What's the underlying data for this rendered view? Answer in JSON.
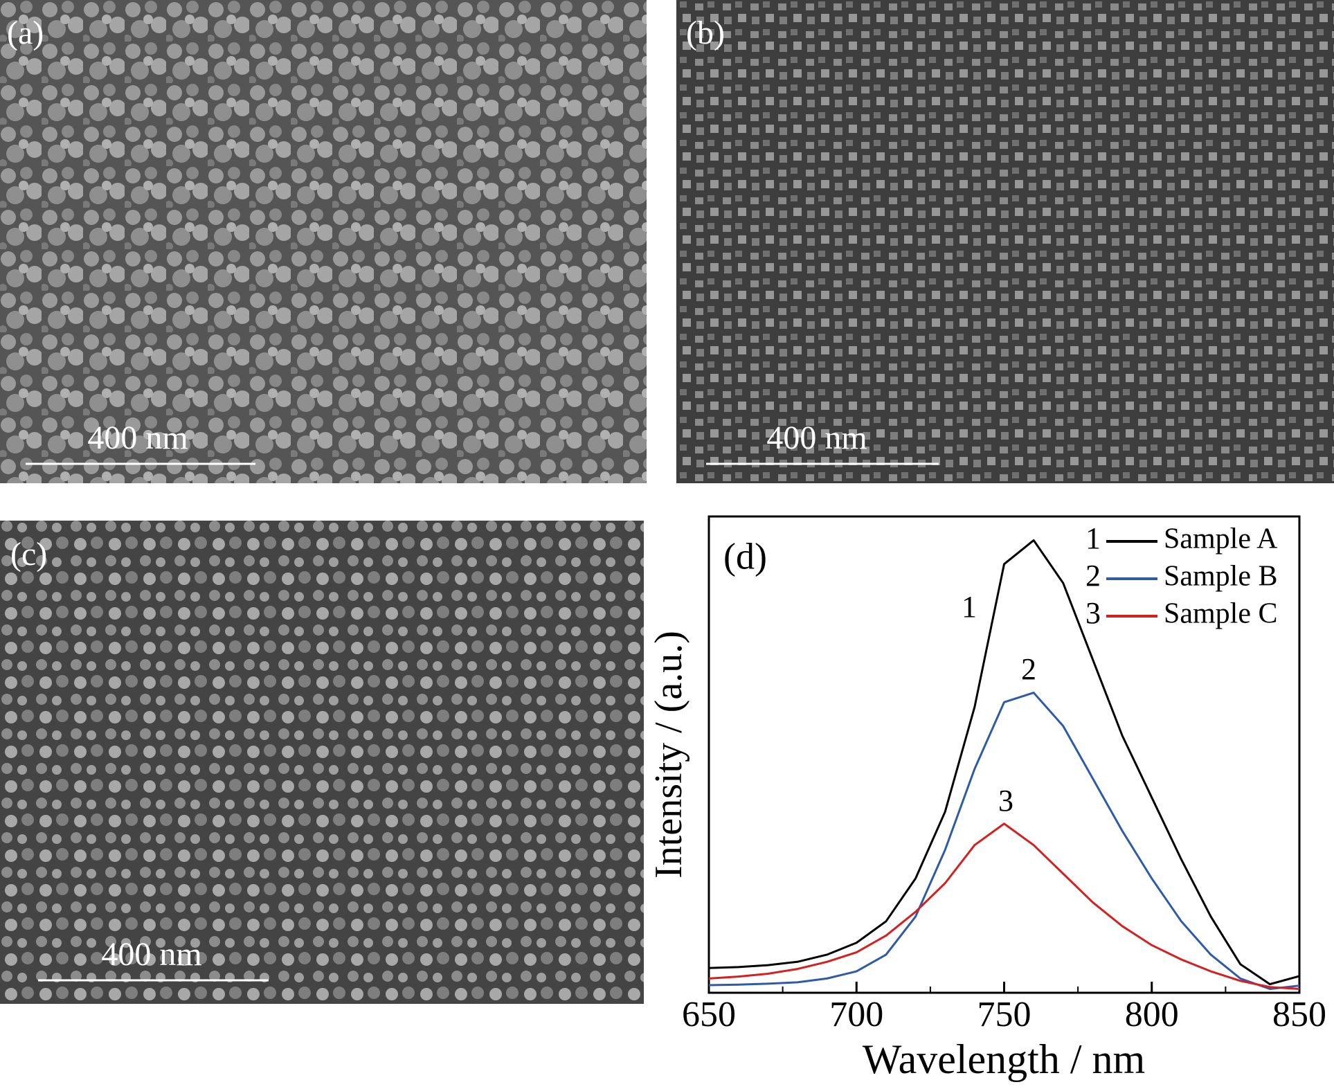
{
  "panels": [
    {
      "label": "(a)",
      "scale_bar": "400 nm"
    },
    {
      "label": "(b)",
      "scale_bar": "400 nm"
    },
    {
      "label": "(c)",
      "scale_bar": "400 nm"
    }
  ],
  "chart_data": {
    "type": "line",
    "label": "(d)",
    "x_label": "Wavelength / nm",
    "y_label": "Intensity / (a.u.)",
    "x": [
      650,
      660,
      670,
      680,
      690,
      700,
      710,
      720,
      730,
      740,
      750,
      760,
      770,
      780,
      790,
      800,
      810,
      820,
      830,
      840,
      850
    ],
    "xlim": [
      650,
      850
    ],
    "xticks": [
      650,
      700,
      750,
      800,
      850
    ],
    "xminor_ticks": [
      675,
      725,
      775,
      825
    ],
    "ylim": [
      0,
      100
    ],
    "legend": "upper right",
    "series": [
      {
        "name": "Sample A",
        "label": "1",
        "color": "#000000",
        "values": [
          5.2,
          5.4,
          5.8,
          6.5,
          8.0,
          10.5,
          15,
          24,
          38,
          60,
          90,
          95,
          86,
          70,
          54,
          41,
          28,
          16,
          6,
          1.8,
          3.5
        ]
      },
      {
        "name": "Sample B",
        "label": "2",
        "color": "#2e5aa8",
        "values": [
          1.6,
          1.7,
          1.9,
          2.2,
          3,
          4.5,
          8,
          16,
          30,
          47,
          61,
          63,
          56,
          45,
          34,
          24,
          15,
          8,
          3,
          0.8,
          1.5
        ]
      },
      {
        "name": "Sample C",
        "label": "3",
        "color": "#d42020",
        "values": [
          3.0,
          3.4,
          4,
          5,
          6.5,
          8.5,
          12,
          17,
          23,
          31,
          35.5,
          31,
          25,
          19,
          14,
          10,
          7,
          4.5,
          2.5,
          1.2,
          0.8
        ]
      }
    ]
  }
}
